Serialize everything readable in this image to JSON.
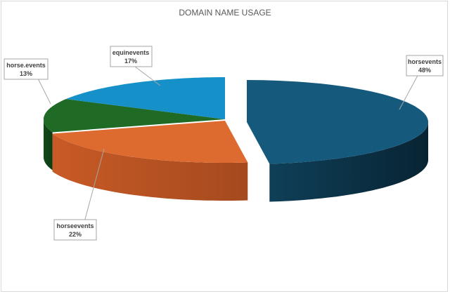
{
  "chart_data": {
    "type": "pie",
    "title": "DOMAIN NAME USAGE",
    "slices": [
      {
        "name": "horsevents",
        "value": 48,
        "label": "48%",
        "color": "#155a7d"
      },
      {
        "name": "horseevents",
        "value": 22,
        "label": "22%",
        "color": "#dd6a2e"
      },
      {
        "name": "horse.events",
        "value": 13,
        "label": "13%",
        "color": "#1f6b26"
      },
      {
        "name": "equinevents",
        "value": 17,
        "label": "17%",
        "color": "#1690c8"
      }
    ],
    "style": "3d-exploded",
    "legend": "none",
    "data_labels": "callouts"
  }
}
